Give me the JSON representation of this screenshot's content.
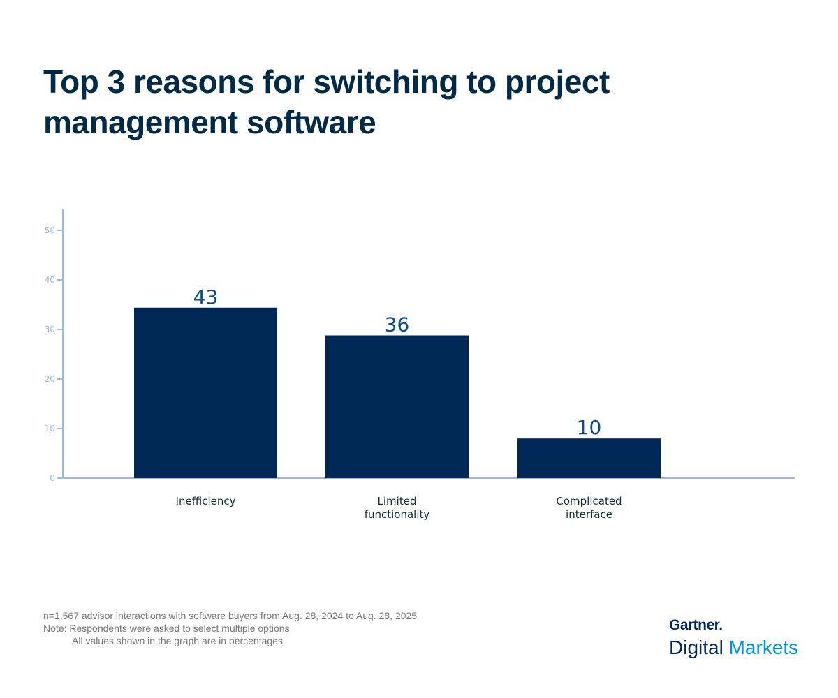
{
  "chart_data": {
    "type": "bar",
    "title": "Top 3 reasons for switching to project management software",
    "categories": [
      "Inefficiency",
      "Limited functionality",
      "Complicated interface"
    ],
    "category_lines": [
      [
        "Inefficiency"
      ],
      [
        "Limited",
        "functionality"
      ],
      [
        "Complicated",
        "interface"
      ]
    ],
    "values": [
      43,
      36,
      10
    ],
    "data_labels": [
      "43",
      "36",
      "10"
    ],
    "ylim": [
      0,
      50
    ],
    "yticks": [
      0,
      10,
      20,
      30,
      40,
      50
    ],
    "xlabel": "",
    "ylabel": "",
    "grid": false,
    "colors": {
      "bar": "#002856",
      "axis": "#9ab8e0",
      "label": "#0f4d85",
      "title": "#002a45"
    }
  },
  "footnotes": {
    "sample": "n=1,567 advisor interactions with software buyers from Aug. 28, 2024 to Aug. 28, 2025",
    "note": "Note: Respondents were asked to select multiple options",
    "note2": "All values shown in the graph are in percentages"
  },
  "logo": {
    "line1": "Gartner.",
    "line2a": "Digital",
    "line2b": "Markets"
  }
}
